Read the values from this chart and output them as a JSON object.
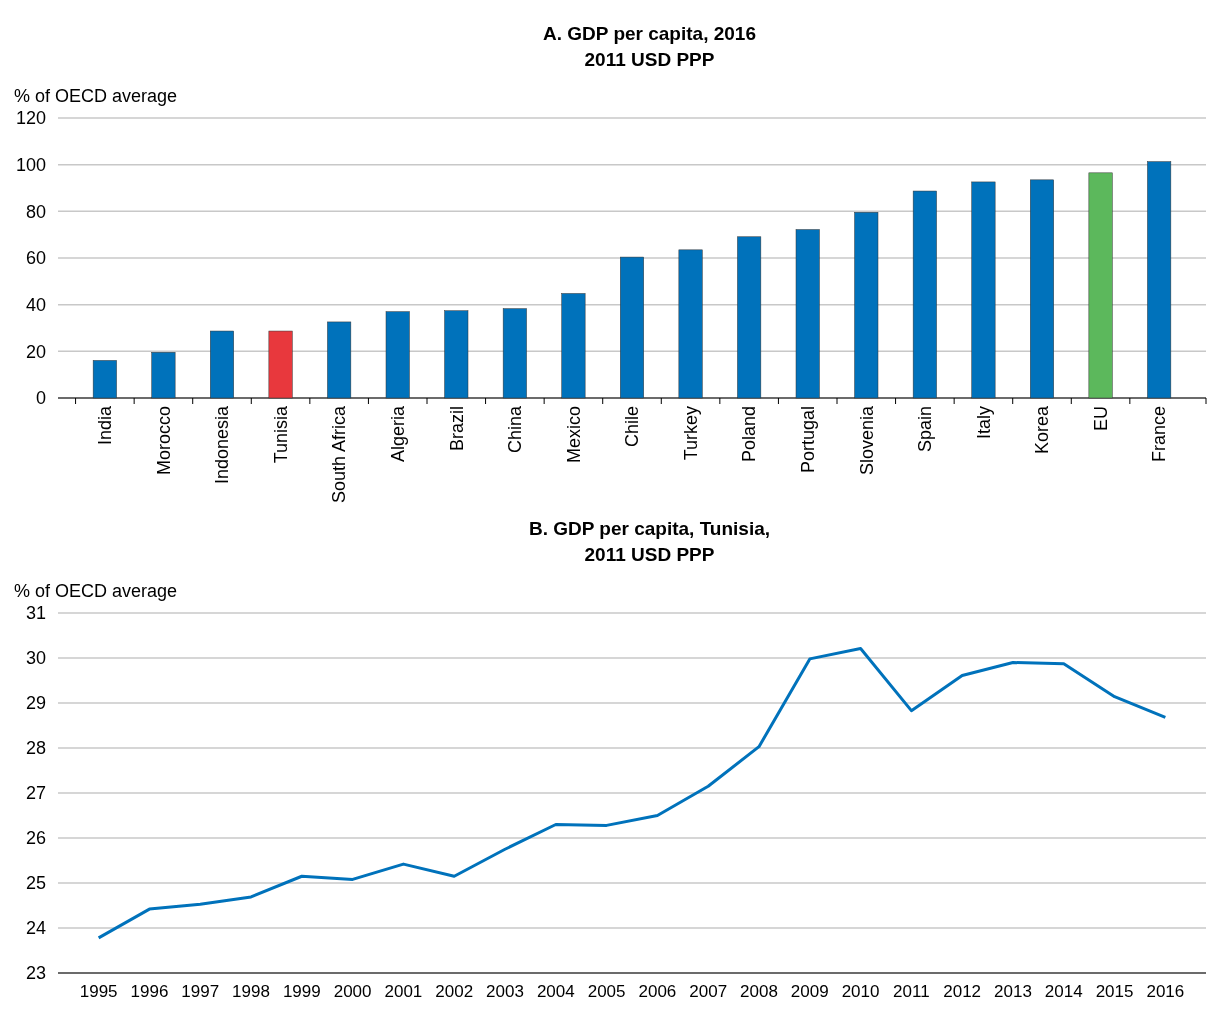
{
  "chart_data": [
    {
      "type": "bar",
      "title": "A. GDP per capita, 2016",
      "subtitle": "2011 USD PPP",
      "ylabel": "% of OECD average",
      "categories": [
        "India",
        "Morocco",
        "Indonesia",
        "Tunisia",
        "South Africa",
        "Algeria",
        "Brazil",
        "China",
        "Mexico",
        "Chile",
        "Turkey",
        "Poland",
        "Portugal",
        "Slovenia",
        "Spain",
        "Italy",
        "Korea",
        "EU",
        "France"
      ],
      "values": [
        16.1,
        19.6,
        28.7,
        28.7,
        32.6,
        37.0,
        37.4,
        38.3,
        44.8,
        60.4,
        63.5,
        69.1,
        72.2,
        79.6,
        88.7,
        92.6,
        93.5,
        96.5,
        101.3
      ],
      "colors": [
        "#0072bb",
        "#0072bb",
        "#0072bb",
        "#e8383d",
        "#0072bb",
        "#0072bb",
        "#0072bb",
        "#0072bb",
        "#0072bb",
        "#0072bb",
        "#0072bb",
        "#0072bb",
        "#0072bb",
        "#0072bb",
        "#0072bb",
        "#0072bb",
        "#0072bb",
        "#5cb85c",
        "#0072bb"
      ],
      "ylim": [
        0,
        120
      ],
      "yticks": [
        0,
        20,
        40,
        60,
        80,
        100,
        120
      ],
      "grid": "y"
    },
    {
      "type": "line",
      "title": "B. GDP per capita, Tunisia,",
      "subtitle": "2011 USD PPP",
      "ylabel": "% of OECD average",
      "categories": [
        "1995",
        "1996",
        "1997",
        "1998",
        "1999",
        "2000",
        "2001",
        "2002",
        "2003",
        "2004",
        "2005",
        "2006",
        "2007",
        "2008",
        "2009",
        "2010",
        "2011",
        "2012",
        "2013",
        "2014",
        "2015",
        "2016"
      ],
      "series": [
        {
          "color": "#0072bb",
          "values": [
            23.78,
            24.42,
            24.53,
            24.69,
            25.15,
            25.08,
            25.42,
            25.15,
            25.75,
            26.3,
            26.28,
            26.5,
            27.15,
            28.03,
            29.98,
            30.21,
            28.83,
            29.61,
            29.9,
            29.87,
            29.14,
            28.68
          ]
        }
      ],
      "ylim": [
        23,
        31
      ],
      "yticks": [
        23,
        24,
        25,
        26,
        27,
        28,
        29,
        30,
        31
      ],
      "grid": "y",
      "marker": "none",
      "line_style": "solid"
    }
  ]
}
